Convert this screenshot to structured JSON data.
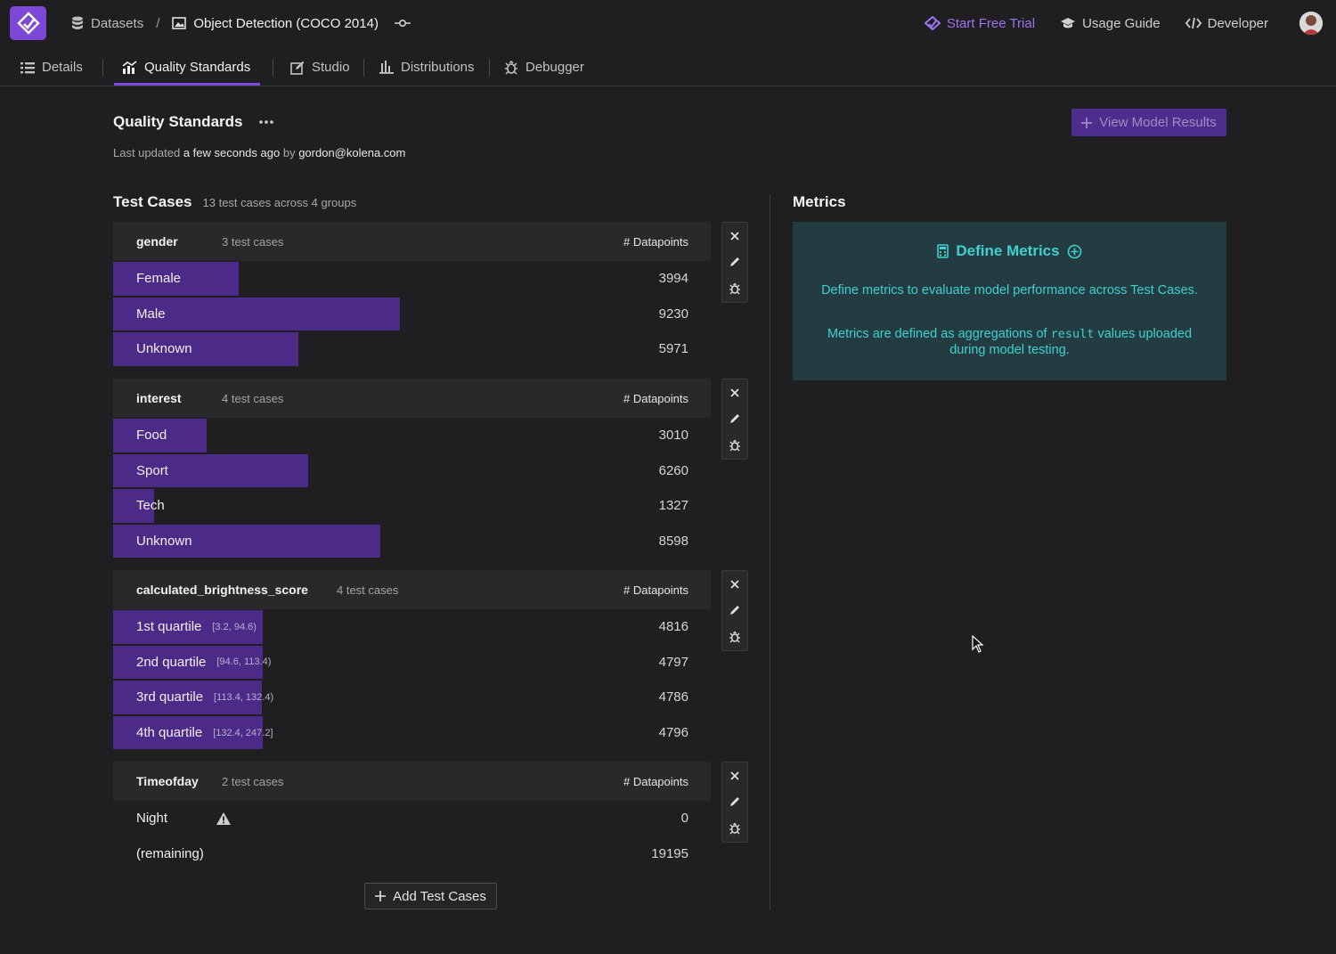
{
  "app": {
    "breadcrumb": [
      {
        "label": "Datasets",
        "icon": "database-icon"
      },
      {
        "label": "Object Detection (COCO 2014)",
        "icon": "image-icon"
      }
    ],
    "top_links": [
      {
        "label": "Start Free Trial",
        "icon": "sparkle-icon"
      },
      {
        "label": "Usage Guide",
        "icon": "graduation-cap-icon"
      },
      {
        "label": "Developer",
        "icon": "code-icon"
      }
    ]
  },
  "tabs": [
    {
      "label": "Details",
      "icon": "list-icon"
    },
    {
      "label": "Quality Standards",
      "icon": "chart-icon",
      "active": true
    },
    {
      "label": "Studio",
      "icon": "edit-icon"
    },
    {
      "label": "Distributions",
      "icon": "bars-icon"
    },
    {
      "label": "Debugger",
      "icon": "bug-icon"
    }
  ],
  "header": {
    "title": "Quality Standards",
    "updated_prefix": "Last updated",
    "updated_time": "a few seconds ago",
    "updated_by_word": "by",
    "updated_user": "gordon@kolena.com",
    "view_button": "View Model Results"
  },
  "test_cases": {
    "title": "Test Cases",
    "summary": "13 test cases across 4 groups",
    "column_label": "# Datapoints",
    "add_button": "Add Test Cases",
    "groups": [
      {
        "name": "gender",
        "count": "3 test cases",
        "rows": [
          {
            "label": "Female",
            "value": "3994",
            "fill": 0.21
          },
          {
            "label": "Male",
            "value": "9230",
            "fill": 0.48
          },
          {
            "label": "Unknown",
            "value": "5971",
            "fill": 0.31
          }
        ]
      },
      {
        "name": "interest",
        "count": "4 test cases",
        "rows": [
          {
            "label": "Food",
            "value": "3010",
            "fill": 0.156
          },
          {
            "label": "Sport",
            "value": "6260",
            "fill": 0.326
          },
          {
            "label": "Tech",
            "value": "1327",
            "fill": 0.069
          },
          {
            "label": "Unknown",
            "value": "8598",
            "fill": 0.447
          }
        ]
      },
      {
        "name": "calculated_brightness_score",
        "count": "4 test cases",
        "rows": [
          {
            "label": "1st quartile",
            "range": "[3.2, 94.6)",
            "value": "4816",
            "fill": 0.251
          },
          {
            "label": "2nd quartile",
            "range": "[94.6, 113.4)",
            "value": "4797",
            "fill": 0.25
          },
          {
            "label": "3rd quartile",
            "range": "[113.4, 132.4)",
            "value": "4786",
            "fill": 0.249
          },
          {
            "label": "4th quartile",
            "range": "[132.4, 247.2]",
            "value": "4796",
            "fill": 0.25
          }
        ]
      },
      {
        "name": "Timeofday",
        "count": "2 test cases",
        "rows": [
          {
            "label": "Night",
            "value": "0",
            "fill": 0,
            "warning": true
          },
          {
            "label": "(remaining)",
            "value": "19195",
            "fill": 0
          }
        ]
      }
    ]
  },
  "metrics": {
    "title": "Metrics",
    "define_label": "Define Metrics",
    "p1": "Define metrics to evaluate model performance across Test Cases.",
    "p2_a": "Metrics are defined as aggregations of",
    "p2_code": "result",
    "p2_b": "values uploaded during model testing."
  },
  "colors": {
    "accent": "#7b48d8",
    "bar": "#4b2a88",
    "metrics_text": "#3fd0cf",
    "metrics_bg": "#223c41"
  }
}
